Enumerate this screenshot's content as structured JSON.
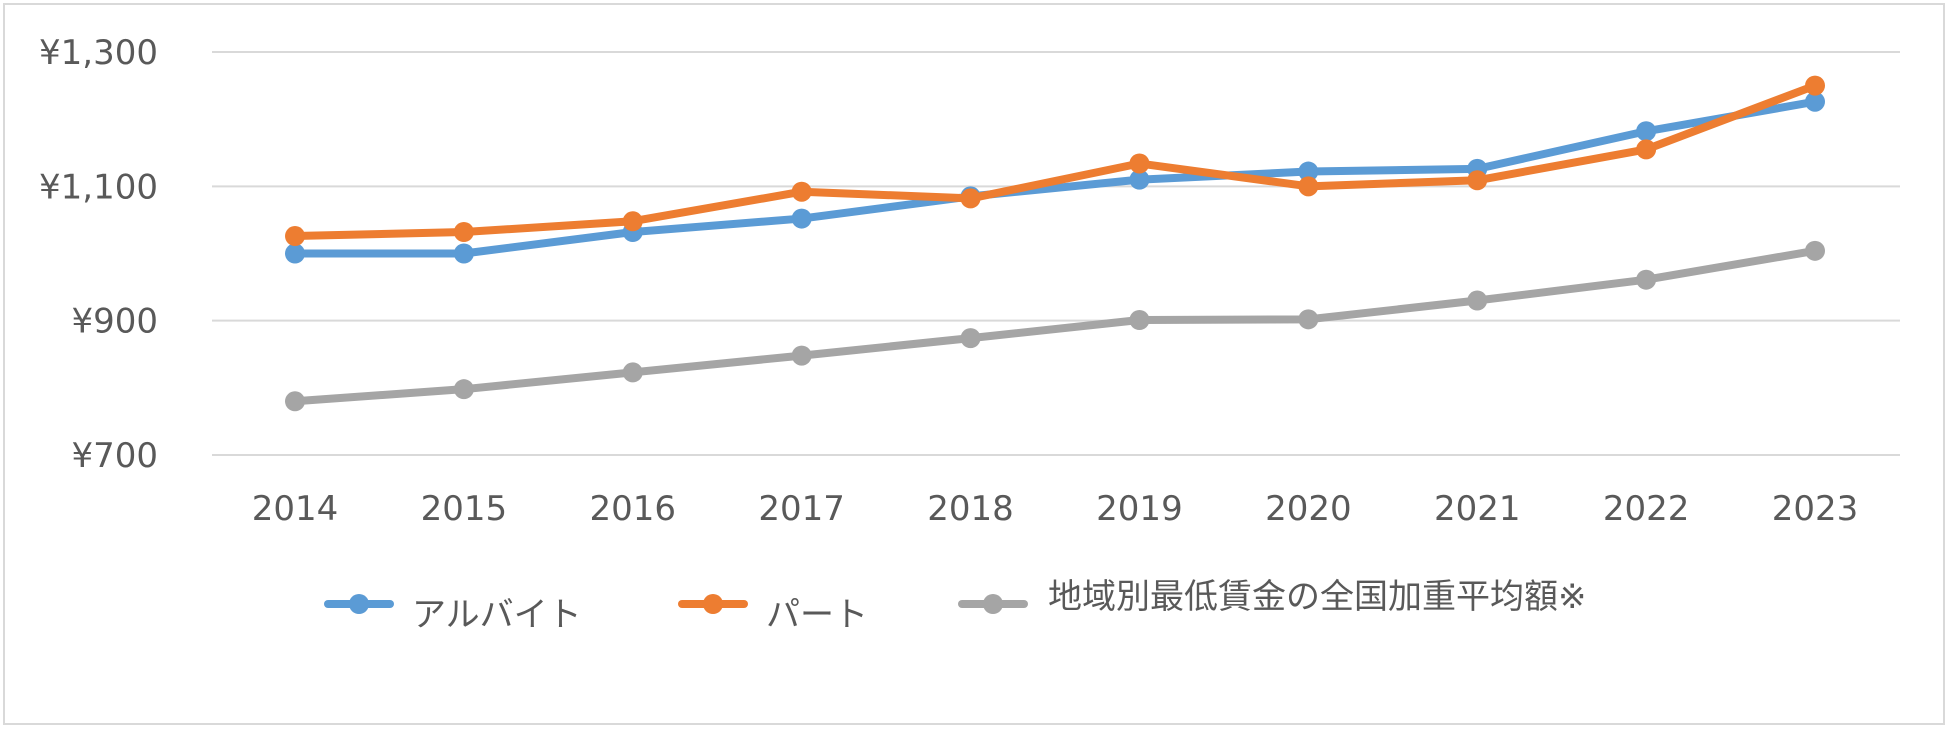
{
  "chart_data": {
    "type": "line",
    "title": "",
    "xlabel": "",
    "ylabel": "",
    "categories": [
      "2014",
      "2015",
      "2016",
      "2017",
      "2018",
      "2019",
      "2020",
      "2021",
      "2022",
      "2023"
    ],
    "ylim": [
      700,
      1300
    ],
    "yticks": [
      700,
      900,
      1100,
      1300
    ],
    "ytick_labels": [
      "¥700",
      "¥900",
      "¥1,100",
      "¥1,300"
    ],
    "grid": true,
    "legend_position": "bottom",
    "series": [
      {
        "name": "アルバイト",
        "color": "#5b9bd5",
        "values": [
          1000,
          1000,
          1032,
          1052,
          1085,
          1110,
          1122,
          1126,
          1182,
          1226
        ]
      },
      {
        "name": "パート",
        "color": "#ed7d31",
        "values": [
          1026,
          1032,
          1048,
          1092,
          1082,
          1134,
          1100,
          1109,
          1155,
          1250
        ]
      },
      {
        "name": "地域別最低賃金の全国加重平均額※",
        "color": "#a5a5a5",
        "values": [
          780,
          798,
          823,
          848,
          874,
          901,
          902,
          930,
          961,
          1004
        ]
      }
    ]
  }
}
